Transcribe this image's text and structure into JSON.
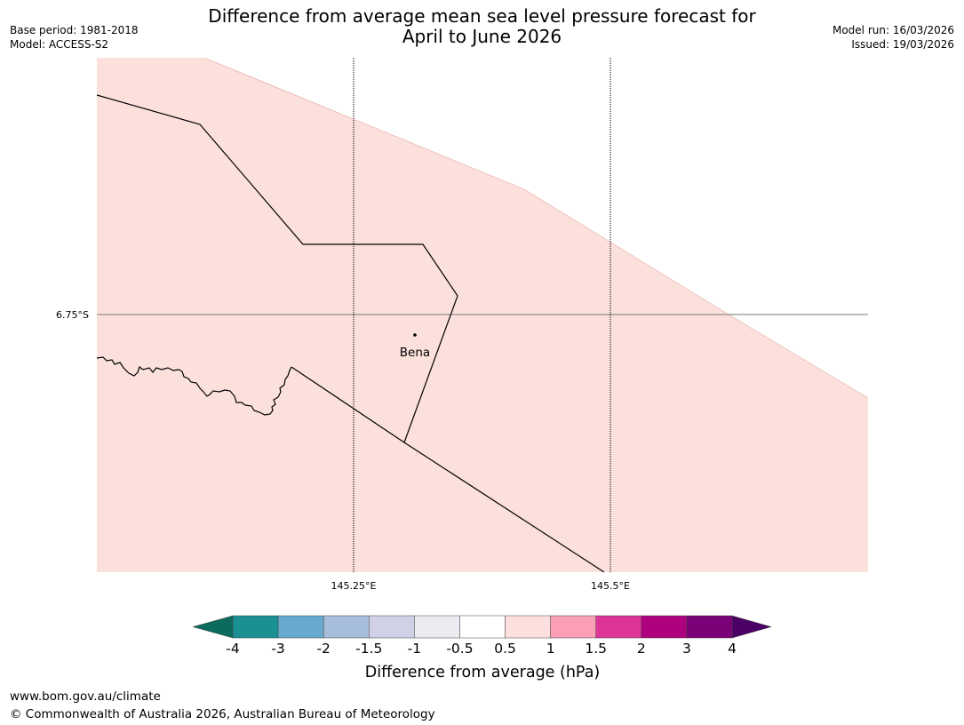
{
  "header": {
    "title_line1": "Difference from average mean sea level pressure forecast for",
    "title_line2": "April to June 2026",
    "base_period": "Base period: 1981-2018",
    "model": "Model: ACCESS-S2",
    "model_run": "Model run: 16/03/2026",
    "issued": "Issued: 19/03/2026"
  },
  "map": {
    "longitude_labels": [
      "145.25°E",
      "145.5°E"
    ],
    "latitude_labels": [
      "6.75°S"
    ],
    "place": {
      "name": "Bena"
    },
    "fill_category": "0.5 to 1",
    "fill_color": "#fbe0dc"
  },
  "colorbar": {
    "label": "Difference from average (hPa)",
    "ticks": [
      "-4",
      "-3",
      "-2",
      "-1.5",
      "-1",
      "-0.5",
      "0.5",
      "1",
      "1.5",
      "2",
      "3",
      "4"
    ],
    "under_color": "#0d6b5e",
    "over_color": "#4b0068",
    "colors": [
      "#1a9095",
      "#67a9cf",
      "#a6bddb",
      "#d0d1e6",
      "#ecebf2",
      "#ffffff",
      "#fde0dd",
      "#fa9fb5",
      "#dd3497",
      "#ae017e",
      "#7a0177"
    ]
  },
  "footer": {
    "url": "www.bom.gov.au/climate",
    "copyright": "© Commonwealth of Australia 2026, Australian Bureau of Meteorology"
  }
}
